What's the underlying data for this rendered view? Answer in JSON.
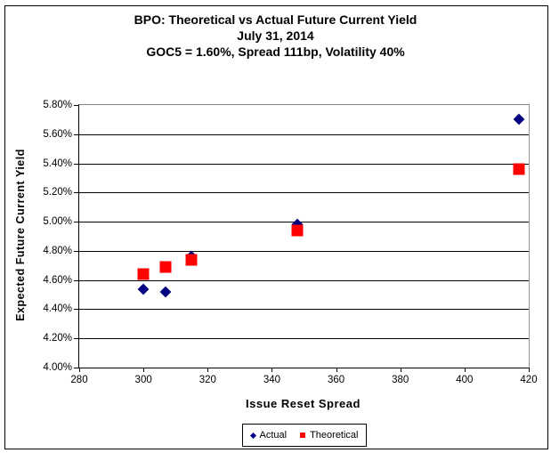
{
  "title": {
    "line1": "BPO: Theoretical vs Actual Future Current Yield",
    "line2": "July 31, 2014",
    "line3": "GOC5 = 1.60%, Spread 111bp, Volatility 40%"
  },
  "chart_data": {
    "type": "scatter",
    "title": "BPO: Theoretical vs Actual Future Current Yield",
    "subtitle": "July 31, 2014",
    "subtitle2": "GOC5 = 1.60%, Spread 111bp, Volatility 40%",
    "xlabel": "Issue Reset Spread",
    "ylabel": "Expected Future Current Yield",
    "y_unit": "%",
    "xlim": [
      280,
      420
    ],
    "ylim": [
      4.0,
      5.8
    ],
    "xticks": [
      280,
      300,
      320,
      340,
      360,
      380,
      400,
      420
    ],
    "yticks": [
      {
        "value": 5.8,
        "label": "5.80%"
      },
      {
        "value": 5.6,
        "label": "5.60%"
      },
      {
        "value": 5.4,
        "label": "5.40%"
      },
      {
        "value": 5.2,
        "label": "5.20%"
      },
      {
        "value": 5.0,
        "label": "5.00%"
      },
      {
        "value": 4.8,
        "label": "4.80%"
      },
      {
        "value": 4.6,
        "label": "4.60%"
      },
      {
        "value": 4.4,
        "label": "4.40%"
      },
      {
        "value": 4.2,
        "label": "4.20%"
      },
      {
        "value": 4.0,
        "label": "4.00%"
      }
    ],
    "grid": "horizontal",
    "legend_position": "bottom-center",
    "series": [
      {
        "name": "Actual",
        "marker": "diamond",
        "color": "#000080",
        "points": [
          {
            "x": 300,
            "y": 4.54
          },
          {
            "x": 307,
            "y": 4.52
          },
          {
            "x": 315,
            "y": 4.76
          },
          {
            "x": 348,
            "y": 4.98
          },
          {
            "x": 417,
            "y": 5.7
          }
        ]
      },
      {
        "name": "Theoretical",
        "marker": "square",
        "color": "#FF0000",
        "points": [
          {
            "x": 300,
            "y": 4.64
          },
          {
            "x": 307,
            "y": 4.69
          },
          {
            "x": 315,
            "y": 4.74
          },
          {
            "x": 348,
            "y": 4.94
          },
          {
            "x": 417,
            "y": 5.36
          }
        ]
      }
    ]
  }
}
